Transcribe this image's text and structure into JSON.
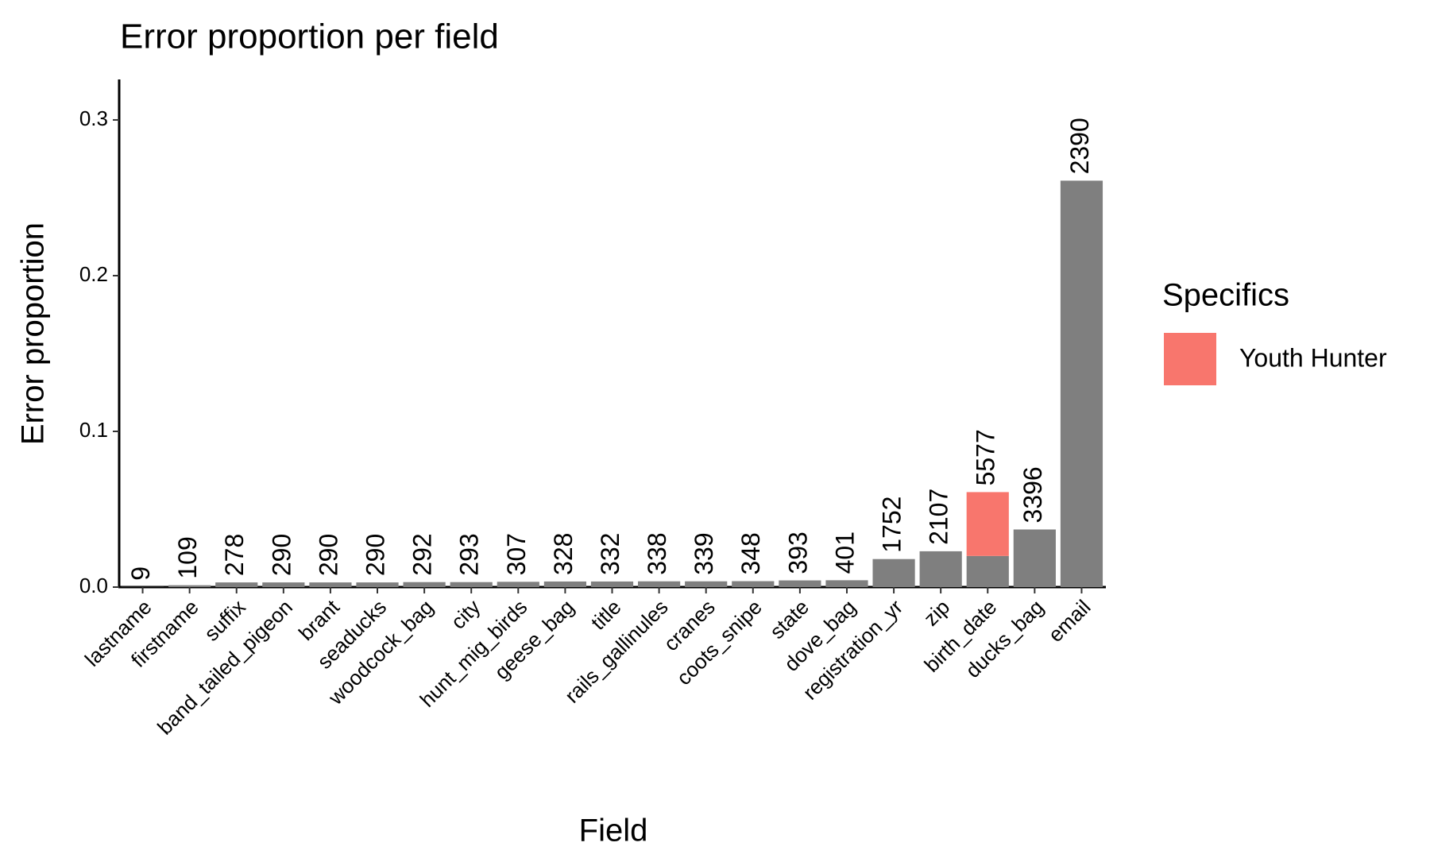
{
  "chart_data": {
    "type": "bar",
    "title": "Error proportion per field",
    "x_label": "Field",
    "y_label": "Error proportion",
    "legend_title": "Specifics",
    "legend_position": "right",
    "categories": [
      "lastname",
      "firstname",
      "suffix",
      "band_tailed_pigeon",
      "brant",
      "seaducks",
      "woodcock_bag",
      "city",
      "hunt_mig_birds",
      "geese_bag",
      "title",
      "rails_gallinules",
      "cranes",
      "coots_snipe",
      "state",
      "dove_bag",
      "registration_yr",
      "zip",
      "birth_date",
      "ducks_bag",
      "email"
    ],
    "series": [
      {
        "color": "#7f7f7f",
        "values": [
          0.0001,
          0.0012,
          0.003,
          0.003,
          0.003,
          0.003,
          0.0032,
          0.0032,
          0.0034,
          0.0036,
          0.0036,
          0.0037,
          0.0037,
          0.0038,
          0.0043,
          0.0044,
          0.018,
          0.023,
          0.02,
          0.037,
          0.261
        ]
      },
      {
        "name": "Youth Hunter",
        "color": "#f8766d",
        "values": [
          null,
          null,
          null,
          null,
          null,
          null,
          null,
          null,
          null,
          null,
          null,
          null,
          null,
          null,
          null,
          null,
          null,
          null,
          0.041,
          null,
          null
        ]
      }
    ],
    "counts": [
      9,
      109,
      278,
      290,
      290,
      290,
      292,
      293,
      307,
      328,
      332,
      338,
      339,
      348,
      393,
      401,
      1752,
      2107,
      5577,
      3396,
      2390
    ],
    "ylim": [
      0,
      0.326
    ],
    "yticks": [
      {
        "value": 0,
        "label": "0.0"
      },
      0.1,
      0.2,
      0.3
    ],
    "grid": false
  }
}
